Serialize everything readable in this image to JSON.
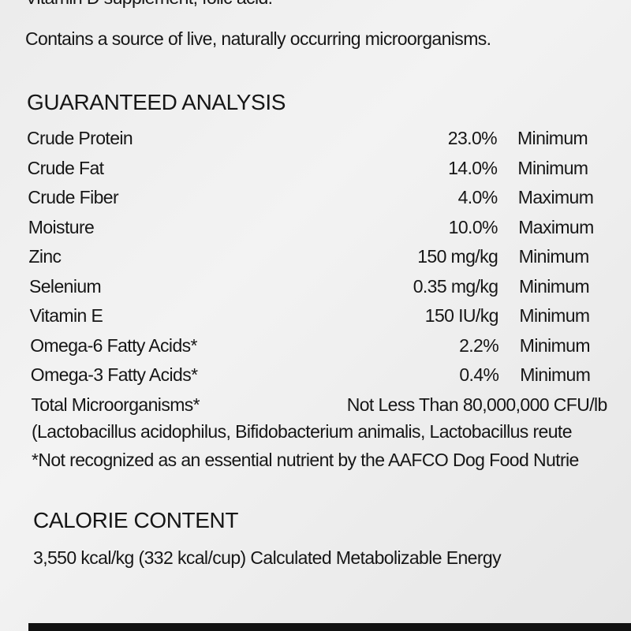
{
  "top_line": "Vitamin D supplement, folic acid.",
  "intro": "Contains a source of live, naturally occurring microorganisms.",
  "analysis": {
    "title": "GUARANTEED ANALYSIS",
    "rows": [
      [
        "Crude Protein",
        "23.0%",
        "Minimum"
      ],
      [
        "Crude Fat",
        "14.0%",
        "Minimum"
      ],
      [
        "Crude Fiber",
        "4.0%",
        "Maximum"
      ],
      [
        "Moisture",
        "10.0%",
        "Maximum"
      ],
      [
        "Zinc",
        "150 mg/kg",
        "Minimum"
      ],
      [
        "Selenium",
        "0.35 mg/kg",
        "Minimum"
      ],
      [
        "Vitamin E",
        "150 IU/kg",
        "Minimum"
      ],
      [
        "Omega-6 Fatty Acids*",
        "2.2%",
        "Minimum"
      ],
      [
        "Omega-3 Fatty Acids*",
        "0.4%",
        "Minimum"
      ],
      [
        "Total Microorganisms*",
        "Not Less Than 80,000,000 CFU/lb"
      ]
    ],
    "species": "(Lactobacillus acidophilus, Bifidobacterium animalis, Lactobacillus reute",
    "footnote": "*Not recognized as an essential nutrient by the AAFCO Dog Food Nutrie"
  },
  "calorie": {
    "title": "CALORIE CONTENT",
    "text": "3,550 kcal/kg (332 kcal/cup) Calculated Metabolizable Energy"
  }
}
